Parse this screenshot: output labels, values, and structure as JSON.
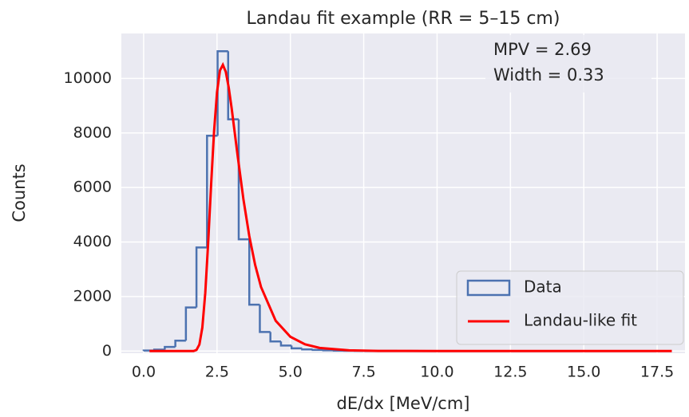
{
  "chart_data": {
    "type": "histogram",
    "title": "Landau fit example (RR = 5–15 cm)",
    "xlabel": "dE/dx [MeV/cm]",
    "ylabel": "Counts",
    "annotations": [
      "MPV = 2.69",
      "Width = 0.33"
    ],
    "bins": [
      0,
      0.36,
      0.72,
      1.08,
      1.44,
      1.8,
      2.16,
      2.52,
      2.88,
      3.24,
      3.6,
      3.96,
      4.32,
      4.68,
      5.04,
      5.4,
      5.76,
      6.12,
      6.48,
      6.84,
      7.2,
      7.56,
      7.92,
      8.28,
      8.64,
      9,
      9.36,
      9.72,
      10.08,
      10.44,
      10.8,
      11.16,
      11.52,
      11.88,
      12.24,
      12.6,
      12.96,
      13.32,
      13.68,
      14.04,
      14.4,
      14.76,
      15.12,
      15.48,
      15.84,
      16.2,
      16.56,
      16.92,
      17.28,
      17.64,
      18
    ],
    "counts": [
      20,
      50,
      150,
      380,
      1600,
      3800,
      7900,
      11000,
      8500,
      4100,
      1700,
      700,
      350,
      200,
      100,
      60,
      40,
      25,
      15,
      10,
      8,
      5,
      4,
      3,
      2,
      2,
      1,
      1,
      1,
      1,
      0,
      0,
      0,
      0,
      0,
      0,
      0,
      0,
      0,
      0,
      0,
      0,
      0,
      0,
      0,
      0,
      0,
      0,
      0,
      0
    ],
    "hist_name": "Data",
    "hist_color": "#4c72b0",
    "fit": {
      "name": "Landau-like fit",
      "color": "#ff0000",
      "x": [
        0.2,
        1.7,
        1.8,
        1.9,
        2.0,
        2.1,
        2.2,
        2.3,
        2.4,
        2.5,
        2.6,
        2.7,
        2.8,
        2.9,
        3.0,
        3.2,
        3.4,
        3.6,
        3.8,
        4.0,
        4.5,
        5.0,
        5.5,
        6.0,
        7.0,
        8.0,
        10,
        18
      ],
      "values": [
        0,
        0,
        39,
        240,
        862,
        2130,
        4000,
        6120,
        8060,
        9490,
        10290,
        10500,
        10240,
        9660,
        8900,
        7190,
        5570,
        4220,
        3160,
        2350,
        1110,
        523,
        245,
        115,
        25,
        5,
        0,
        0
      ]
    },
    "xlim": [
      -0.76,
      18.45
    ],
    "ylim": [
      -80,
      11650
    ],
    "xticks": [
      {
        "value": 0,
        "label": "0.0"
      },
      {
        "value": 2.5,
        "label": "2.5"
      },
      {
        "value": 5,
        "label": "5.0"
      },
      {
        "value": 7.5,
        "label": "7.5"
      },
      {
        "value": 10,
        "label": "10.0"
      },
      {
        "value": 12.5,
        "label": "12.5"
      },
      {
        "value": 15,
        "label": "15.0"
      },
      {
        "value": 17.5,
        "label": "17.5"
      }
    ],
    "yticks": [
      0,
      2000,
      4000,
      6000,
      8000,
      10000
    ],
    "grid": true,
    "legend": "lower right"
  }
}
